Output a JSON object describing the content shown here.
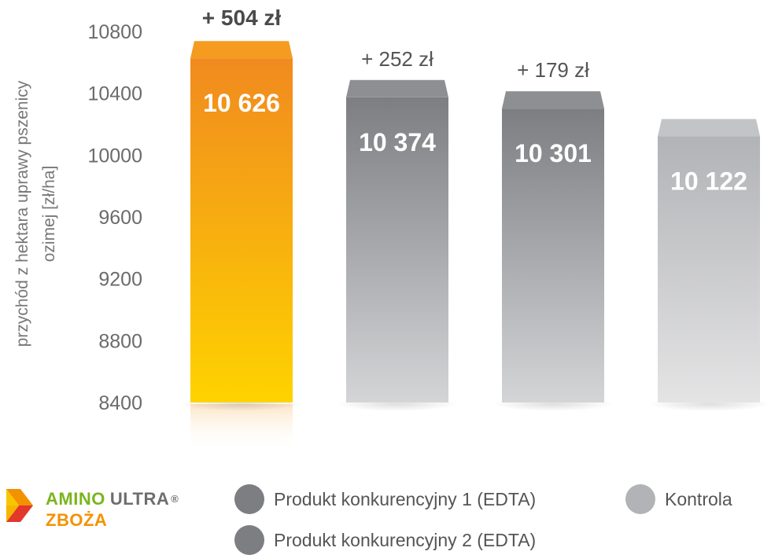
{
  "chart_data": {
    "type": "bar",
    "ylabel_lines": [
      "przychód z hektara uprawy pszenicy",
      "ozimej [zł/ha]"
    ],
    "ylim": [
      8400,
      10800
    ],
    "yticks": [
      8400,
      8800,
      9200,
      9600,
      10000,
      10400,
      10800
    ],
    "ytick_labels": [
      "8400",
      "8800",
      "9200",
      "9600",
      "10000",
      "10400",
      "10800"
    ],
    "categories": [
      "AMINO ULTRA® ZBOŻA",
      "Produkt konkurencyjny 1 (EDTA)",
      "Produkt konkurencyjny 2 (EDTA)",
      "Kontrola"
    ],
    "values": [
      10626,
      10374,
      10301,
      10122
    ],
    "value_labels": [
      "10 626",
      "10 374",
      "10 301",
      "10 122"
    ],
    "difference_labels": [
      "+ 504 zł",
      "+ 252 zł",
      "+ 179 zł",
      ""
    ],
    "colors": {
      "amino_top": "#f18a1f",
      "amino_bottom": "#fed300",
      "competitor_top": "#7d7e82",
      "competitor_bottom": "#d4d5d7",
      "control_top": "#b2b3b6",
      "control_bottom": "#e4e4e5"
    },
    "grid": false,
    "legend_position": "bottom"
  },
  "legend": {
    "brand": {
      "amino": "AMINO",
      "ultra": "ULTRA",
      "registered": "®",
      "product": "ZBOŻA",
      "icon": "brand-chevron-icon"
    },
    "items": [
      {
        "label": "Produkt konkurencyjny 1 (EDTA)",
        "color": "#7d7e82"
      },
      {
        "label": "Produkt konkurencyjny 2 (EDTA)",
        "color": "#7d7e82"
      },
      {
        "label": "Kontrola",
        "color": "#b2b3b6"
      }
    ]
  }
}
